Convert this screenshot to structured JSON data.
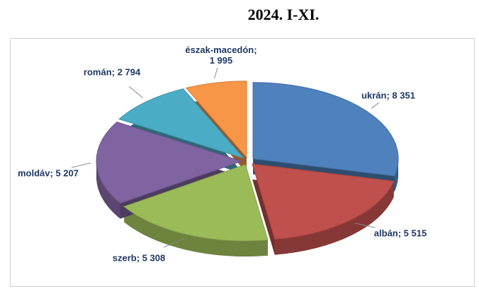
{
  "chart_data": {
    "type": "pie",
    "title": "2024. I-XI.",
    "values": [
      8351,
      5515,
      5308,
      5207,
      2794,
      1995
    ],
    "value_labels": [
      "ukrán; 8 351",
      "albán; 5 515",
      "szerb; 5 308",
      "moldáv; 5 207",
      "román; 2 794",
      "észak-macedón;\n1 995"
    ],
    "colors": [
      "#4f81bd",
      "#c0504d",
      "#9bbb59",
      "#8064a2",
      "#4bacc6",
      "#f79646"
    ]
  }
}
